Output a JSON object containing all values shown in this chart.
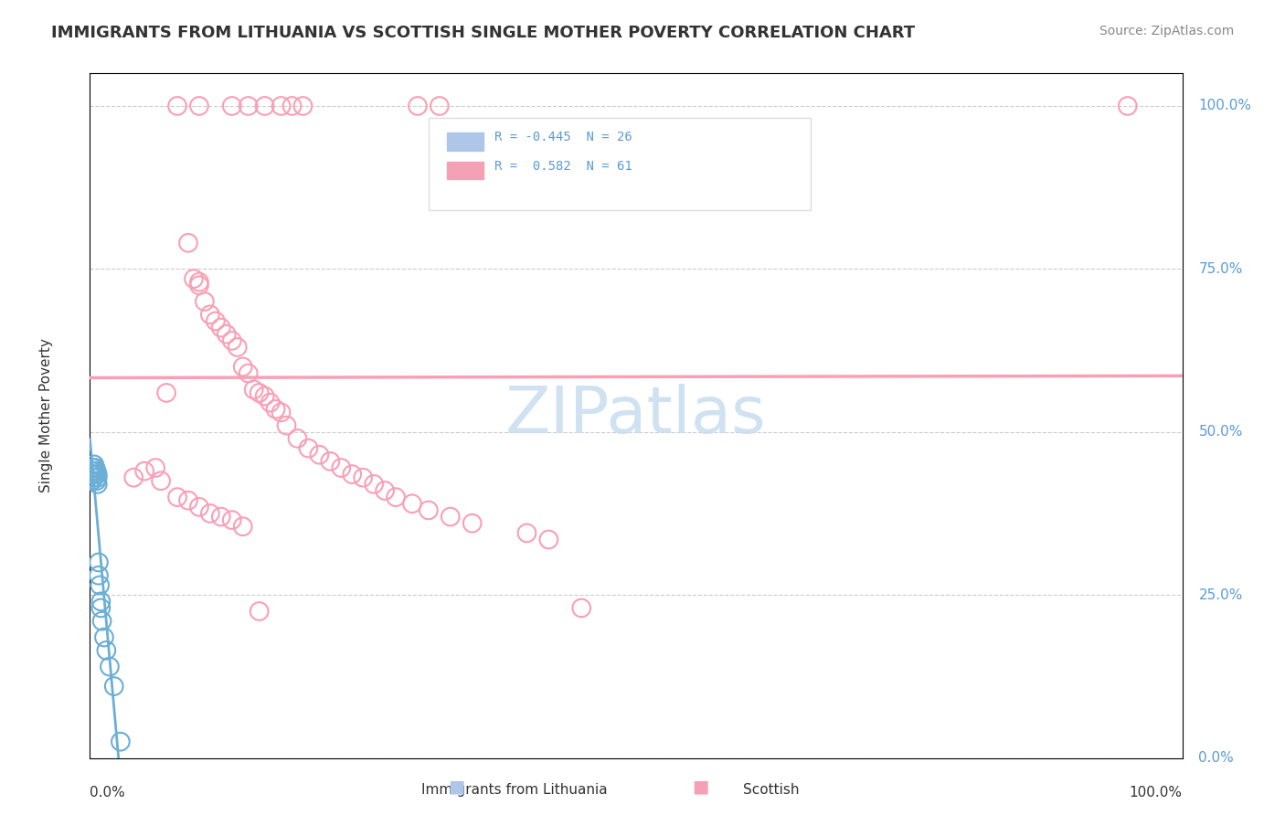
{
  "title": "IMMIGRANTS FROM LITHUANIA VS SCOTTISH SINGLE MOTHER POVERTY CORRELATION CHART",
  "source": "Source: ZipAtlas.com",
  "ylabel": "Single Mother Poverty",
  "legend_label1": "Immigrants from Lithuania",
  "legend_label2": "Scottish",
  "R_blue": -0.445,
  "N_blue": 26,
  "R_pink": 0.582,
  "N_pink": 61,
  "blue_color": "#6baed6",
  "pink_color": "#fa9fb5",
  "blue_legend_color": "#aec6e8",
  "pink_legend_color": "#f4a0b5",
  "watermark_color": "#c8ddf0",
  "background_color": "#ffffff",
  "grid_color": "#cccccc",
  "title_color": "#333333",
  "tick_label_color": "#5b9bd5",
  "blue_x": [
    0.001,
    0.0015,
    0.002,
    0.002,
    0.003,
    0.003,
    0.004,
    0.004,
    0.005,
    0.005,
    0.006,
    0.006,
    0.007,
    0.007,
    0.007,
    0.008,
    0.008,
    0.009,
    0.01,
    0.01,
    0.011,
    0.013,
    0.015,
    0.018,
    0.022,
    0.028
  ],
  "blue_y": [
    0.435,
    0.44,
    0.435,
    0.425,
    0.445,
    0.43,
    0.45,
    0.44,
    0.445,
    0.435,
    0.425,
    0.44,
    0.43,
    0.42,
    0.435,
    0.3,
    0.28,
    0.265,
    0.24,
    0.23,
    0.21,
    0.185,
    0.165,
    0.14,
    0.11,
    0.025
  ],
  "pink_top_x": [
    0.08,
    0.1,
    0.13,
    0.145,
    0.16,
    0.175,
    0.185,
    0.195,
    0.3,
    0.32,
    0.95
  ],
  "pink_top_y": [
    1.0,
    1.0,
    1.0,
    1.0,
    1.0,
    1.0,
    1.0,
    1.0,
    1.0,
    1.0,
    1.0
  ],
  "pink_x": [
    0.04,
    0.06,
    0.07,
    0.09,
    0.095,
    0.1,
    0.1,
    0.105,
    0.11,
    0.115,
    0.12,
    0.125,
    0.13,
    0.135,
    0.14,
    0.145,
    0.15,
    0.155,
    0.16,
    0.165,
    0.17,
    0.175,
    0.18,
    0.19,
    0.2,
    0.21,
    0.22,
    0.23,
    0.24,
    0.25,
    0.26,
    0.27,
    0.28,
    0.295,
    0.31,
    0.33,
    0.35,
    0.4,
    0.42,
    0.45,
    0.05,
    0.065,
    0.08,
    0.09,
    0.1,
    0.11,
    0.12,
    0.13,
    0.14,
    0.155
  ],
  "pink_y": [
    0.43,
    0.445,
    0.56,
    0.79,
    0.735,
    0.73,
    0.725,
    0.7,
    0.68,
    0.67,
    0.66,
    0.65,
    0.64,
    0.63,
    0.6,
    0.59,
    0.565,
    0.56,
    0.555,
    0.545,
    0.535,
    0.53,
    0.51,
    0.49,
    0.475,
    0.465,
    0.455,
    0.445,
    0.435,
    0.43,
    0.42,
    0.41,
    0.4,
    0.39,
    0.38,
    0.37,
    0.36,
    0.345,
    0.335,
    0.23,
    0.44,
    0.425,
    0.4,
    0.395,
    0.385,
    0.375,
    0.37,
    0.365,
    0.355,
    0.225
  ],
  "ytick_vals": [
    0.0,
    0.25,
    0.5,
    0.75,
    1.0
  ],
  "ytick_labels": [
    "0.0%",
    "25.0%",
    "50.0%",
    "75.0%",
    "100.0%"
  ]
}
